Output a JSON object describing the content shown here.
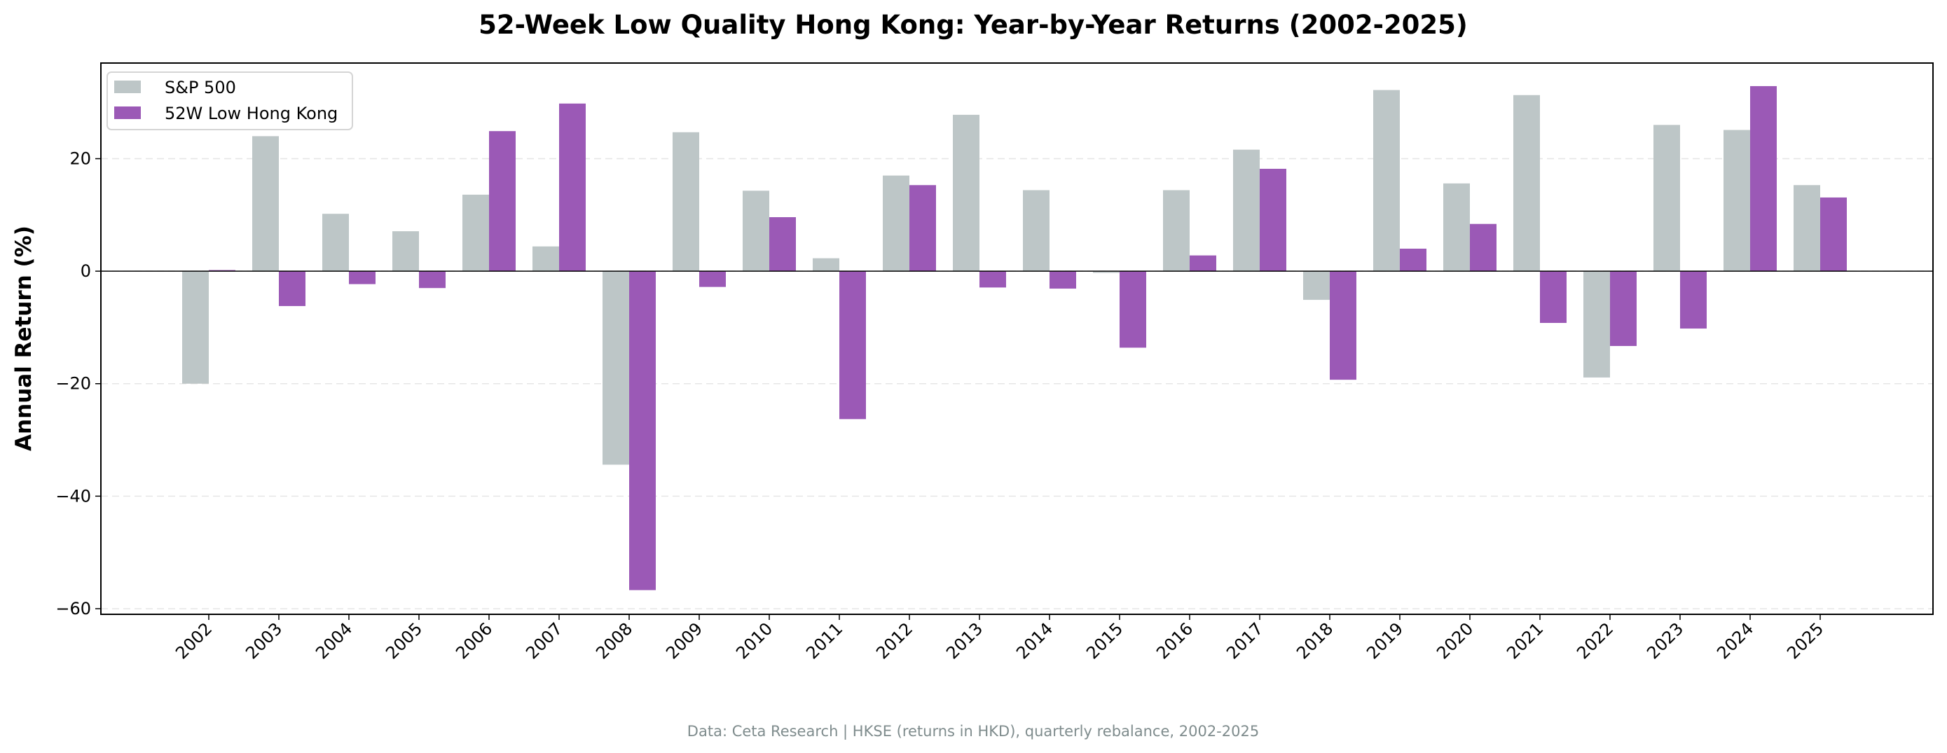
{
  "chart_data": {
    "type": "bar",
    "title": "52-Week Low Quality Hong Kong: Year-by-Year Returns (2002-2025)",
    "xlabel": "",
    "ylabel": "Annual Return (%)",
    "ylim": [
      -61,
      37
    ],
    "yticks": [
      -60,
      -40,
      -20,
      0,
      20
    ],
    "grid": true,
    "legend_position": "top-left",
    "categories": [
      "2002",
      "2003",
      "2004",
      "2005",
      "2006",
      "2007",
      "2008",
      "2009",
      "2010",
      "2011",
      "2012",
      "2013",
      "2014",
      "2015",
      "2016",
      "2017",
      "2018",
      "2019",
      "2020",
      "2021",
      "2022",
      "2023",
      "2024",
      "2025"
    ],
    "series": [
      {
        "name": "S&P 500",
        "color": "#bdc6c7",
        "values": [
          -20.0,
          24.0,
          10.2,
          7.1,
          13.6,
          4.4,
          -34.4,
          24.7,
          14.3,
          2.3,
          17.0,
          27.8,
          14.4,
          -0.3,
          14.4,
          21.6,
          -5.1,
          32.2,
          15.6,
          31.3,
          -18.9,
          26.0,
          25.1,
          15.3
        ]
      },
      {
        "name": "52W Low Hong Kong",
        "color": "#9b59b6",
        "values": [
          0.2,
          -6.2,
          -2.3,
          -3.0,
          24.9,
          29.8,
          -56.7,
          -2.8,
          9.6,
          -26.3,
          15.3,
          -2.9,
          -3.1,
          -13.6,
          2.8,
          18.2,
          -19.3,
          4.0,
          8.4,
          -9.2,
          -13.3,
          -10.2,
          32.9,
          13.1
        ]
      }
    ],
    "footer": "Data: Ceta Research | HKSE (returns in HKD), quarterly rebalance, 2002-2025"
  }
}
